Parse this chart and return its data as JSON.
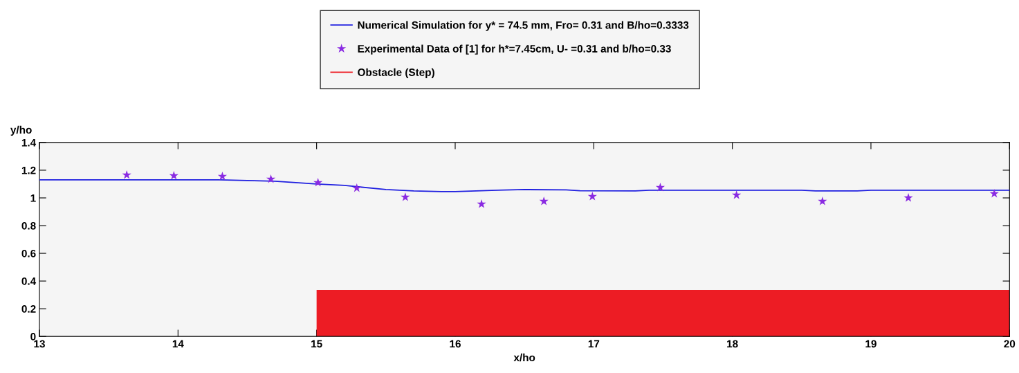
{
  "chart_data": {
    "type": "line",
    "xlabel": "x/ho",
    "ylabel": "y/ho",
    "xlim": [
      13,
      20
    ],
    "xticks": [
      13,
      14,
      15,
      16,
      17,
      18,
      19,
      20
    ],
    "ylim": [
      0,
      1.4
    ],
    "yticks": [
      0,
      0.2,
      0.4,
      0.6,
      0.8,
      1,
      1.2,
      1.4
    ],
    "grid": false,
    "legend": "top",
    "series": [
      {
        "name": "Numerical Simulation for y* = 74.5 mm, Fro= 0.31 and B/ho=0.3333",
        "color": "#1f1fe0",
        "marker": "none",
        "line_style": "solid",
        "x": [
          13,
          14.3,
          14.7,
          15.0,
          15.2,
          15.5,
          15.7,
          15.9,
          16.0,
          16.3,
          16.5,
          16.8,
          16.9,
          17.3,
          17.4,
          18.5,
          18.6,
          18.9,
          19.0,
          20
        ],
        "values": [
          1.13,
          1.13,
          1.12,
          1.1,
          1.09,
          1.06,
          1.05,
          1.045,
          1.045,
          1.055,
          1.06,
          1.058,
          1.052,
          1.05,
          1.055,
          1.055,
          1.05,
          1.05,
          1.055,
          1.055
        ]
      },
      {
        "name": "Experimental Data of [1] for h*=7.45cm, U- =0.31 and b/ho=0.33",
        "type": "scatter",
        "color": "#8a2be2",
        "marker": "star",
        "x": [
          13.63,
          13.97,
          14.32,
          14.67,
          15.01,
          15.29,
          15.64,
          16.19,
          16.64,
          16.99,
          17.48,
          18.03,
          18.65,
          19.27,
          19.89
        ],
        "values": [
          1.165,
          1.16,
          1.155,
          1.135,
          1.11,
          1.07,
          1.005,
          0.955,
          0.975,
          1.01,
          1.075,
          1.02,
          0.975,
          1.0,
          1.03
        ]
      },
      {
        "name": "Obstacle (Step)",
        "type": "area",
        "color": "#ed1c24",
        "x": [
          15,
          20
        ],
        "values": [
          0.335,
          0.335
        ]
      }
    ]
  }
}
